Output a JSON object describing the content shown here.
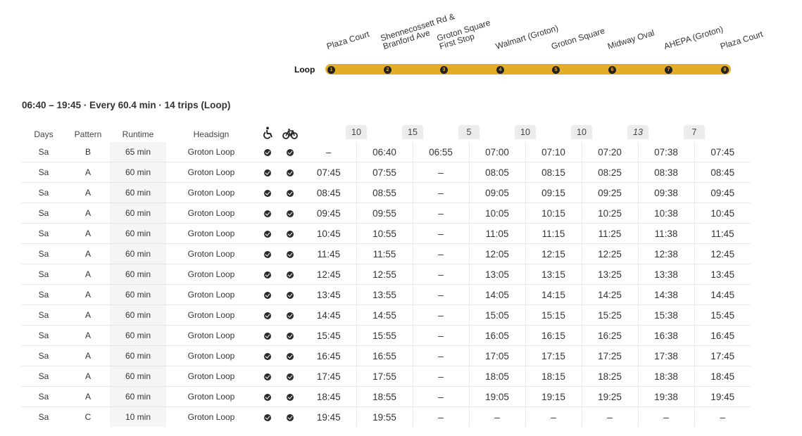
{
  "route": {
    "label": "Loop",
    "color": "#e3ad2a",
    "stops": [
      {
        "num": "1",
        "name": "Plaza Court"
      },
      {
        "num": "2",
        "name": "Shennecossett Rd &\nBranford Ave"
      },
      {
        "num": "3",
        "name": "Groton Square\nFirst Stop"
      },
      {
        "num": "4",
        "name": "Walmart (Groton)"
      },
      {
        "num": "5",
        "name": "Groton Square"
      },
      {
        "num": "6",
        "name": "Midway Oval"
      },
      {
        "num": "7",
        "name": "AHEPA (Groton)"
      },
      {
        "num": "8",
        "name": "Plaza Court"
      }
    ]
  },
  "summary": "06:40 – 19:45 · Every 60.4 min · 14 trips (Loop)",
  "table": {
    "headers": {
      "days": "Days",
      "pattern": "Pattern",
      "runtime": "Runtime",
      "headsign": "Headsign",
      "accessible_icon": "wheelchair-icon",
      "bike_icon": "bicycle-icon"
    },
    "segment_minutes": [
      "10",
      "15",
      "5",
      "10",
      "10",
      "13",
      "7"
    ],
    "rows": [
      {
        "days": "Sa",
        "pattern": "B",
        "runtime": "65 min",
        "headsign": "Groton Loop",
        "times": [
          "–",
          "06:40",
          "06:55",
          "07:00",
          "07:10",
          "07:20",
          "07:38",
          "07:45"
        ]
      },
      {
        "days": "Sa",
        "pattern": "A",
        "runtime": "60 min",
        "headsign": "Groton Loop",
        "times": [
          "07:45",
          "07:55",
          "–",
          "08:05",
          "08:15",
          "08:25",
          "08:38",
          "08:45"
        ]
      },
      {
        "days": "Sa",
        "pattern": "A",
        "runtime": "60 min",
        "headsign": "Groton Loop",
        "times": [
          "08:45",
          "08:55",
          "–",
          "09:05",
          "09:15",
          "09:25",
          "09:38",
          "09:45"
        ]
      },
      {
        "days": "Sa",
        "pattern": "A",
        "runtime": "60 min",
        "headsign": "Groton Loop",
        "times": [
          "09:45",
          "09:55",
          "–",
          "10:05",
          "10:15",
          "10:25",
          "10:38",
          "10:45"
        ]
      },
      {
        "days": "Sa",
        "pattern": "A",
        "runtime": "60 min",
        "headsign": "Groton Loop",
        "times": [
          "10:45",
          "10:55",
          "–",
          "11:05",
          "11:15",
          "11:25",
          "11:38",
          "11:45"
        ]
      },
      {
        "days": "Sa",
        "pattern": "A",
        "runtime": "60 min",
        "headsign": "Groton Loop",
        "times": [
          "11:45",
          "11:55",
          "–",
          "12:05",
          "12:15",
          "12:25",
          "12:38",
          "12:45"
        ]
      },
      {
        "days": "Sa",
        "pattern": "A",
        "runtime": "60 min",
        "headsign": "Groton Loop",
        "times": [
          "12:45",
          "12:55",
          "–",
          "13:05",
          "13:15",
          "13:25",
          "13:38",
          "13:45"
        ]
      },
      {
        "days": "Sa",
        "pattern": "A",
        "runtime": "60 min",
        "headsign": "Groton Loop",
        "times": [
          "13:45",
          "13:55",
          "–",
          "14:05",
          "14:15",
          "14:25",
          "14:38",
          "14:45"
        ]
      },
      {
        "days": "Sa",
        "pattern": "A",
        "runtime": "60 min",
        "headsign": "Groton Loop",
        "times": [
          "14:45",
          "14:55",
          "–",
          "15:05",
          "15:15",
          "15:25",
          "15:38",
          "15:45"
        ]
      },
      {
        "days": "Sa",
        "pattern": "A",
        "runtime": "60 min",
        "headsign": "Groton Loop",
        "times": [
          "15:45",
          "15:55",
          "–",
          "16:05",
          "16:15",
          "16:25",
          "16:38",
          "16:45"
        ]
      },
      {
        "days": "Sa",
        "pattern": "A",
        "runtime": "60 min",
        "headsign": "Groton Loop",
        "times": [
          "16:45",
          "16:55",
          "–",
          "17:05",
          "17:15",
          "17:25",
          "17:38",
          "17:45"
        ]
      },
      {
        "days": "Sa",
        "pattern": "A",
        "runtime": "60 min",
        "headsign": "Groton Loop",
        "times": [
          "17:45",
          "17:55",
          "–",
          "18:05",
          "18:15",
          "18:25",
          "18:38",
          "18:45"
        ]
      },
      {
        "days": "Sa",
        "pattern": "A",
        "runtime": "60 min",
        "headsign": "Groton Loop",
        "times": [
          "18:45",
          "18:55",
          "–",
          "19:05",
          "19:15",
          "19:25",
          "19:38",
          "19:45"
        ]
      },
      {
        "days": "Sa",
        "pattern": "C",
        "runtime": "10 min",
        "headsign": "Groton Loop",
        "times": [
          "19:45",
          "19:55",
          "–",
          "–",
          "–",
          "–",
          "–",
          "–"
        ]
      }
    ]
  }
}
